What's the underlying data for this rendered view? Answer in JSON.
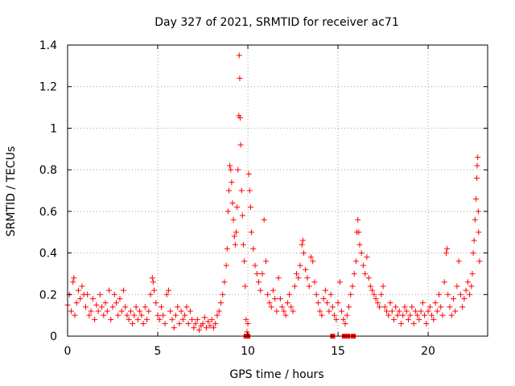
{
  "chart_data": {
    "type": "scatter",
    "title": "Day 327 of 2021, SRMTID for receiver ac71",
    "xlabel": "GPS time / hours",
    "ylabel": "SRMTID / TECUs",
    "xlim": [
      0,
      23.3
    ],
    "ylim": [
      0,
      1.4
    ],
    "x_ticks": [
      0,
      5,
      10,
      15,
      20
    ],
    "x_tick_labels": [
      "0",
      "5",
      "10",
      "15",
      "20"
    ],
    "y_ticks": [
      0,
      0.2,
      0.4,
      0.6,
      0.8,
      1.0,
      1.2,
      1.4
    ],
    "y_tick_labels": [
      "0",
      "0.2",
      "0.4",
      "0.6",
      "0.8",
      "1",
      "1.2",
      "1.4"
    ],
    "grid": true,
    "marker": "plus",
    "color": "#ff0000",
    "series": [
      {
        "name": "SRMTID",
        "envelope_note": "dense scatter; representative points read from figure",
        "points": [
          [
            0.0,
            0.15
          ],
          [
            0.1,
            0.2
          ],
          [
            0.2,
            0.12
          ],
          [
            0.3,
            0.26
          ],
          [
            0.35,
            0.28
          ],
          [
            0.4,
            0.1
          ],
          [
            0.5,
            0.16
          ],
          [
            0.6,
            0.22
          ],
          [
            0.7,
            0.18
          ],
          [
            0.8,
            0.24
          ],
          [
            0.9,
            0.2
          ],
          [
            1.0,
            0.14
          ],
          [
            1.1,
            0.2
          ],
          [
            1.2,
            0.1
          ],
          [
            1.3,
            0.12
          ],
          [
            1.4,
            0.18
          ],
          [
            1.5,
            0.08
          ],
          [
            1.6,
            0.15
          ],
          [
            1.7,
            0.12
          ],
          [
            1.8,
            0.2
          ],
          [
            1.9,
            0.14
          ],
          [
            2.0,
            0.1
          ],
          [
            2.1,
            0.16
          ],
          [
            2.2,
            0.12
          ],
          [
            2.3,
            0.22
          ],
          [
            2.4,
            0.08
          ],
          [
            2.5,
            0.14
          ],
          [
            2.6,
            0.2
          ],
          [
            2.7,
            0.16
          ],
          [
            2.8,
            0.1
          ],
          [
            2.9,
            0.18
          ],
          [
            3.0,
            0.12
          ],
          [
            3.1,
            0.22
          ],
          [
            3.2,
            0.14
          ],
          [
            3.3,
            0.1
          ],
          [
            3.4,
            0.08
          ],
          [
            3.5,
            0.12
          ],
          [
            3.6,
            0.06
          ],
          [
            3.7,
            0.1
          ],
          [
            3.8,
            0.14
          ],
          [
            3.9,
            0.08
          ],
          [
            4.0,
            0.12
          ],
          [
            4.1,
            0.1
          ],
          [
            4.2,
            0.06
          ],
          [
            4.3,
            0.14
          ],
          [
            4.4,
            0.08
          ],
          [
            4.5,
            0.12
          ],
          [
            4.6,
            0.2
          ],
          [
            4.7,
            0.28
          ],
          [
            4.75,
            0.26
          ],
          [
            4.8,
            0.22
          ],
          [
            4.9,
            0.16
          ],
          [
            5.0,
            0.1
          ],
          [
            5.1,
            0.08
          ],
          [
            5.2,
            0.14
          ],
          [
            5.3,
            0.1
          ],
          [
            5.4,
            0.06
          ],
          [
            5.5,
            0.2
          ],
          [
            5.6,
            0.22
          ],
          [
            5.7,
            0.12
          ],
          [
            5.8,
            0.08
          ],
          [
            5.9,
            0.04
          ],
          [
            6.0,
            0.1
          ],
          [
            6.1,
            0.14
          ],
          [
            6.2,
            0.06
          ],
          [
            6.3,
            0.12
          ],
          [
            6.4,
            0.08
          ],
          [
            6.5,
            0.1
          ],
          [
            6.6,
            0.14
          ],
          [
            6.7,
            0.06
          ],
          [
            6.8,
            0.12
          ],
          [
            6.9,
            0.08
          ],
          [
            7.0,
            0.04
          ],
          [
            7.1,
            0.06
          ],
          [
            7.2,
            0.08
          ],
          [
            7.3,
            0.03
          ],
          [
            7.4,
            0.05
          ],
          [
            7.5,
            0.06
          ],
          [
            7.6,
            0.09
          ],
          [
            7.7,
            0.04
          ],
          [
            7.8,
            0.07
          ],
          [
            7.9,
            0.05
          ],
          [
            8.0,
            0.08
          ],
          [
            8.1,
            0.04
          ],
          [
            8.2,
            0.06
          ],
          [
            8.3,
            0.1
          ],
          [
            8.4,
            0.12
          ],
          [
            8.5,
            0.16
          ],
          [
            8.6,
            0.2
          ],
          [
            8.7,
            0.26
          ],
          [
            8.8,
            0.34
          ],
          [
            8.85,
            0.42
          ],
          [
            8.9,
            0.6
          ],
          [
            8.95,
            0.7
          ],
          [
            9.0,
            0.82
          ],
          [
            9.05,
            0.8
          ],
          [
            9.1,
            0.74
          ],
          [
            9.15,
            0.64
          ],
          [
            9.2,
            0.56
          ],
          [
            9.25,
            0.48
          ],
          [
            9.3,
            0.44
          ],
          [
            9.35,
            0.5
          ],
          [
            9.4,
            0.62
          ],
          [
            9.45,
            0.8
          ],
          [
            9.5,
            1.06
          ],
          [
            9.52,
            1.35
          ],
          [
            9.55,
            1.24
          ],
          [
            9.57,
            1.05
          ],
          [
            9.6,
            0.92
          ],
          [
            9.65,
            0.7
          ],
          [
            9.7,
            0.58
          ],
          [
            9.75,
            0.44
          ],
          [
            9.8,
            0.36
          ],
          [
            9.85,
            0.24
          ],
          [
            9.9,
            0.08
          ],
          [
            9.95,
            0.02
          ],
          [
            10.0,
            0.06
          ],
          [
            10.05,
            0.78
          ],
          [
            10.1,
            0.7
          ],
          [
            10.15,
            0.62
          ],
          [
            10.2,
            0.5
          ],
          [
            10.3,
            0.42
          ],
          [
            10.4,
            0.34
          ],
          [
            10.5,
            0.3
          ],
          [
            10.6,
            0.26
          ],
          [
            10.7,
            0.22
          ],
          [
            10.8,
            0.3
          ],
          [
            10.9,
            0.56
          ],
          [
            11.0,
            0.36
          ],
          [
            11.1,
            0.2
          ],
          [
            11.2,
            0.16
          ],
          [
            11.3,
            0.14
          ],
          [
            11.4,
            0.22
          ],
          [
            11.5,
            0.18
          ],
          [
            11.6,
            0.12
          ],
          [
            11.7,
            0.28
          ],
          [
            11.8,
            0.18
          ],
          [
            11.9,
            0.14
          ],
          [
            12.0,
            0.12
          ],
          [
            12.1,
            0.1
          ],
          [
            12.2,
            0.16
          ],
          [
            12.3,
            0.2
          ],
          [
            12.4,
            0.14
          ],
          [
            12.5,
            0.12
          ],
          [
            12.6,
            0.24
          ],
          [
            12.7,
            0.3
          ],
          [
            12.8,
            0.28
          ],
          [
            12.9,
            0.34
          ],
          [
            13.0,
            0.44
          ],
          [
            13.05,
            0.46
          ],
          [
            13.1,
            0.4
          ],
          [
            13.2,
            0.32
          ],
          [
            13.3,
            0.28
          ],
          [
            13.4,
            0.24
          ],
          [
            13.5,
            0.38
          ],
          [
            13.6,
            0.36
          ],
          [
            13.7,
            0.26
          ],
          [
            13.8,
            0.2
          ],
          [
            13.9,
            0.16
          ],
          [
            14.0,
            0.12
          ],
          [
            14.1,
            0.1
          ],
          [
            14.2,
            0.18
          ],
          [
            14.3,
            0.22
          ],
          [
            14.4,
            0.16
          ],
          [
            14.5,
            0.12
          ],
          [
            14.6,
            0.2
          ],
          [
            14.7,
            0.14
          ],
          [
            14.8,
            0.1
          ],
          [
            14.9,
            0.08
          ],
          [
            15.0,
            0.16
          ],
          [
            15.1,
            0.26
          ],
          [
            15.2,
            0.12
          ],
          [
            15.3,
            0.08
          ],
          [
            15.4,
            0.06
          ],
          [
            15.5,
            0.1
          ],
          [
            15.6,
            0.14
          ],
          [
            15.7,
            0.2
          ],
          [
            15.8,
            0.24
          ],
          [
            15.9,
            0.3
          ],
          [
            16.0,
            0.36
          ],
          [
            16.05,
            0.5
          ],
          [
            16.1,
            0.56
          ],
          [
            16.15,
            0.5
          ],
          [
            16.2,
            0.44
          ],
          [
            16.3,
            0.4
          ],
          [
            16.4,
            0.34
          ],
          [
            16.5,
            0.3
          ],
          [
            16.6,
            0.38
          ],
          [
            16.7,
            0.28
          ],
          [
            16.8,
            0.24
          ],
          [
            16.9,
            0.22
          ],
          [
            17.0,
            0.2
          ],
          [
            17.1,
            0.18
          ],
          [
            17.2,
            0.16
          ],
          [
            17.3,
            0.14
          ],
          [
            17.4,
            0.2
          ],
          [
            17.5,
            0.24
          ],
          [
            17.6,
            0.14
          ],
          [
            17.7,
            0.12
          ],
          [
            17.8,
            0.1
          ],
          [
            17.9,
            0.16
          ],
          [
            18.0,
            0.12
          ],
          [
            18.1,
            0.08
          ],
          [
            18.2,
            0.14
          ],
          [
            18.3,
            0.1
          ],
          [
            18.4,
            0.12
          ],
          [
            18.5,
            0.06
          ],
          [
            18.6,
            0.1
          ],
          [
            18.7,
            0.14
          ],
          [
            18.8,
            0.12
          ],
          [
            18.9,
            0.08
          ],
          [
            19.0,
            0.1
          ],
          [
            19.1,
            0.14
          ],
          [
            19.2,
            0.06
          ],
          [
            19.3,
            0.12
          ],
          [
            19.4,
            0.1
          ],
          [
            19.5,
            0.08
          ],
          [
            19.6,
            0.12
          ],
          [
            19.7,
            0.16
          ],
          [
            19.8,
            0.1
          ],
          [
            19.9,
            0.06
          ],
          [
            20.0,
            0.12
          ],
          [
            20.1,
            0.14
          ],
          [
            20.2,
            0.1
          ],
          [
            20.3,
            0.08
          ],
          [
            20.4,
            0.16
          ],
          [
            20.5,
            0.12
          ],
          [
            20.6,
            0.2
          ],
          [
            20.7,
            0.14
          ],
          [
            20.8,
            0.1
          ],
          [
            20.9,
            0.26
          ],
          [
            21.0,
            0.4
          ],
          [
            21.05,
            0.42
          ],
          [
            21.1,
            0.2
          ],
          [
            21.2,
            0.14
          ],
          [
            21.3,
            0.1
          ],
          [
            21.4,
            0.18
          ],
          [
            21.5,
            0.12
          ],
          [
            21.6,
            0.24
          ],
          [
            21.7,
            0.36
          ],
          [
            21.8,
            0.2
          ],
          [
            21.9,
            0.14
          ],
          [
            22.0,
            0.18
          ],
          [
            22.1,
            0.22
          ],
          [
            22.2,
            0.26
          ],
          [
            22.3,
            0.2
          ],
          [
            22.4,
            0.24
          ],
          [
            22.45,
            0.3
          ],
          [
            22.5,
            0.4
          ],
          [
            22.55,
            0.46
          ],
          [
            22.6,
            0.56
          ],
          [
            22.65,
            0.66
          ],
          [
            22.7,
            0.76
          ],
          [
            22.72,
            0.82
          ],
          [
            22.75,
            0.86
          ],
          [
            22.78,
            0.6
          ],
          [
            22.8,
            0.5
          ],
          [
            22.85,
            0.36
          ]
        ],
        "zero_points": [
          [
            9.9,
            0.0
          ],
          [
            10.0,
            0.0
          ],
          [
            14.7,
            0.0
          ],
          [
            15.35,
            0.0
          ],
          [
            15.45,
            0.0
          ],
          [
            15.55,
            0.0
          ],
          [
            15.85,
            0.0
          ]
        ]
      }
    ]
  }
}
